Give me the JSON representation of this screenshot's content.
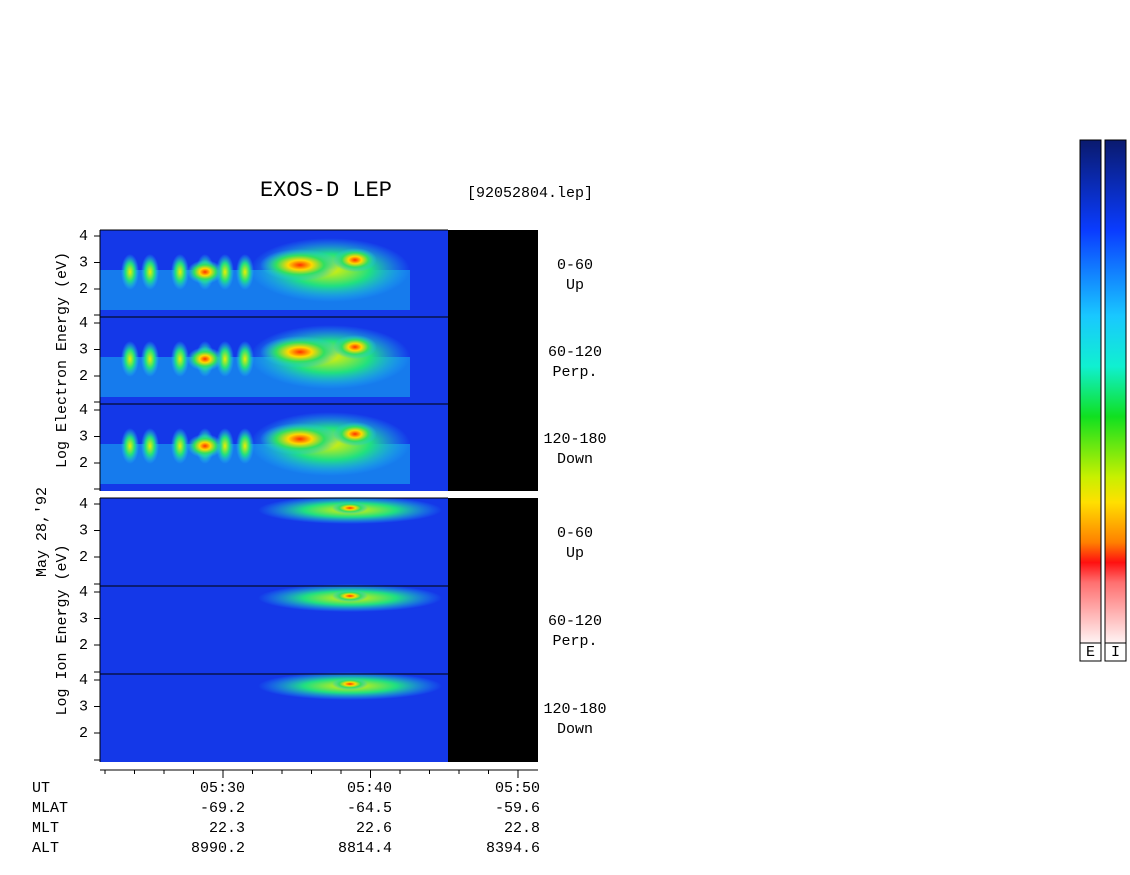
{
  "title": "EXOS-D LEP",
  "file": "[92052804.lep]",
  "date": "May 28,'92",
  "electron": {
    "axis_label": "Log Electron Energy (eV)",
    "panels": [
      {
        "yticks": [
          4,
          3,
          2
        ],
        "range": "0-60",
        "direction": "Up"
      },
      {
        "yticks": [
          4,
          3,
          2
        ],
        "range": "60-120",
        "direction": "Perp."
      },
      {
        "yticks": [
          4,
          3,
          2
        ],
        "range": "120-180",
        "direction": "Down"
      }
    ]
  },
  "ion": {
    "axis_label": "Log Ion Energy (eV)",
    "panels": [
      {
        "yticks": [
          4,
          3,
          2
        ],
        "range": "0-60",
        "direction": "Up"
      },
      {
        "yticks": [
          4,
          3,
          2
        ],
        "range": "60-120",
        "direction": "Perp."
      },
      {
        "yticks": [
          4,
          3,
          2
        ],
        "range": "120-180",
        "direction": "Down"
      }
    ]
  },
  "time_axis": {
    "rows": [
      {
        "label": "UT",
        "values": [
          "05:30",
          "05:40",
          "05:50"
        ]
      },
      {
        "label": "MLAT",
        "values": [
          -69.2,
          -64.5,
          -59.6
        ]
      },
      {
        "label": "MLT",
        "values": [
          22.3,
          22.6,
          22.8
        ]
      },
      {
        "label": "ALT",
        "values": [
          8990.2,
          8814.4,
          8394.6
        ]
      }
    ]
  },
  "colorbar": {
    "labels": [
      "E",
      "I"
    ]
  }
}
